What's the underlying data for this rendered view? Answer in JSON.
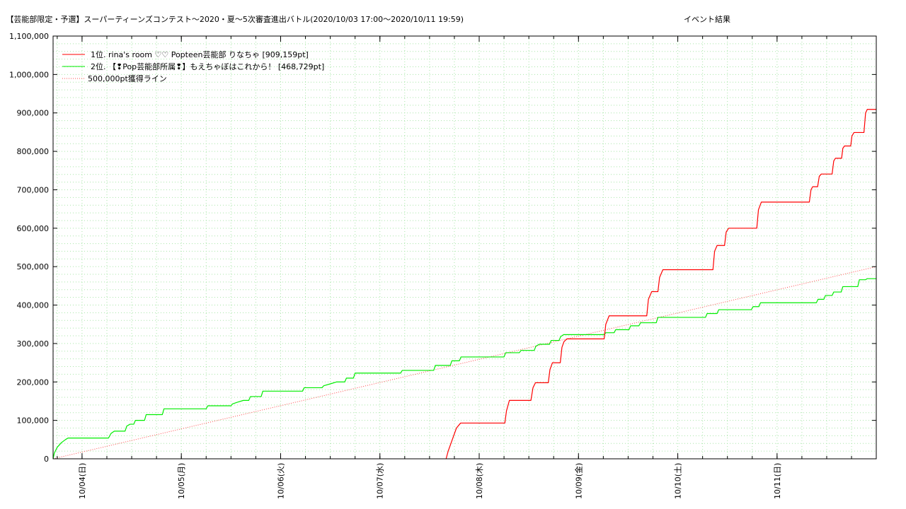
{
  "chart_data": {
    "type": "line",
    "title": "【芸能部限定・予選】スーパーティーンズコンテスト〜2020・夏〜5次審査進出バトル(2020/10/03 17:00〜2020/10/11 19:59)",
    "subtitle": "イベント結果",
    "xlabel": "",
    "ylabel": "",
    "x_unit": "hours since 2020/10/03 17:00",
    "xlim": [
      0,
      198.98
    ],
    "ylim": [
      0,
      1100000
    ],
    "y_ticks": [
      0,
      100000,
      200000,
      300000,
      400000,
      500000,
      600000,
      700000,
      800000,
      900000,
      1000000,
      1100000
    ],
    "y_tick_labels": [
      "0",
      "100,000",
      "200,000",
      "300,000",
      "400,000",
      "500,000",
      "600,000",
      "700,000",
      "800,000",
      "900,000",
      "1,000,000",
      "1,100,000"
    ],
    "x_ticks": [
      {
        "x": 7,
        "label": "10/04(日)"
      },
      {
        "x": 31,
        "label": "10/05(月)"
      },
      {
        "x": 55,
        "label": "10/06(火)"
      },
      {
        "x": 79,
        "label": "10/07(水)"
      },
      {
        "x": 103,
        "label": "10/08(木)"
      },
      {
        "x": 127,
        "label": "10/09(金)"
      },
      {
        "x": 151,
        "label": "10/10(土)"
      },
      {
        "x": 175,
        "label": "10/11(日)"
      }
    ],
    "grid": true,
    "legend_position": "top-left",
    "series": [
      {
        "name": "1位. rina's room ♡♡ Popteen芸能部 りなちゃ [909,159pt]",
        "color": "#ff0000",
        "style": "solid",
        "points": [
          [
            95.0,
            0
          ],
          [
            95.5,
            20000
          ],
          [
            96.5,
            50000
          ],
          [
            97.5,
            80000
          ],
          [
            98.5,
            93000
          ],
          [
            109.2,
            93000
          ],
          [
            109.6,
            125000
          ],
          [
            110.3,
            152000
          ],
          [
            115.5,
            152000
          ],
          [
            116.0,
            185000
          ],
          [
            116.6,
            198000
          ],
          [
            119.7,
            198000
          ],
          [
            120.1,
            232000
          ],
          [
            120.7,
            250000
          ],
          [
            122.6,
            250000
          ],
          [
            123.0,
            290000
          ],
          [
            123.5,
            305000
          ],
          [
            124.2,
            312000
          ],
          [
            133.2,
            312000
          ],
          [
            133.6,
            350000
          ],
          [
            134.4,
            372000
          ],
          [
            143.5,
            372000
          ],
          [
            143.9,
            415000
          ],
          [
            144.7,
            435000
          ],
          [
            146.2,
            435000
          ],
          [
            146.6,
            472000
          ],
          [
            147.4,
            492000
          ],
          [
            159.5,
            492000
          ],
          [
            159.9,
            540000
          ],
          [
            160.5,
            555000
          ],
          [
            162.3,
            555000
          ],
          [
            162.7,
            590000
          ],
          [
            163.3,
            600000
          ],
          [
            170.1,
            600000
          ],
          [
            170.5,
            648000
          ],
          [
            171.2,
            668000
          ],
          [
            182.8,
            668000
          ],
          [
            183.2,
            700000
          ],
          [
            183.6,
            708000
          ],
          [
            184.8,
            708000
          ],
          [
            185.2,
            735000
          ],
          [
            185.7,
            741000
          ],
          [
            188.3,
            741000
          ],
          [
            188.7,
            775000
          ],
          [
            189.1,
            782000
          ],
          [
            190.6,
            782000
          ],
          [
            190.9,
            808000
          ],
          [
            191.3,
            814000
          ],
          [
            192.8,
            814000
          ],
          [
            193.1,
            840000
          ],
          [
            193.6,
            849000
          ],
          [
            196.0,
            849000
          ],
          [
            196.4,
            900000
          ],
          [
            196.8,
            909159
          ],
          [
            198.98,
            909159
          ]
        ]
      },
      {
        "name": "2位. 【❢Pop芸能部所属❢】もえちゃぼはこれから！ [468,729pt]",
        "color": "#00ee00",
        "style": "solid",
        "points": [
          [
            0,
            0
          ],
          [
            0.3,
            15000
          ],
          [
            1.0,
            30000
          ],
          [
            2.0,
            42000
          ],
          [
            3.0,
            50000
          ],
          [
            3.6,
            54000
          ],
          [
            13.4,
            54000
          ],
          [
            14.0,
            66000
          ],
          [
            14.8,
            72000
          ],
          [
            17.4,
            72000
          ],
          [
            17.8,
            85000
          ],
          [
            18.6,
            90000
          ],
          [
            19.5,
            90000
          ],
          [
            19.9,
            100000
          ],
          [
            22.1,
            100000
          ],
          [
            22.5,
            115000
          ],
          [
            26.4,
            115000
          ],
          [
            26.8,
            130000
          ],
          [
            37.0,
            130000
          ],
          [
            37.4,
            138000
          ],
          [
            43.0,
            138000
          ],
          [
            43.4,
            143000
          ],
          [
            44.5,
            147000
          ],
          [
            46.0,
            152000
          ],
          [
            47.3,
            152000
          ],
          [
            47.7,
            162000
          ],
          [
            50.3,
            162000
          ],
          [
            50.7,
            176000
          ],
          [
            60.3,
            176000
          ],
          [
            60.7,
            185000
          ],
          [
            65.0,
            185000
          ],
          [
            65.4,
            190000
          ],
          [
            67.0,
            195000
          ],
          [
            68.5,
            200000
          ],
          [
            70.5,
            200000
          ],
          [
            70.9,
            210000
          ],
          [
            72.6,
            210000
          ],
          [
            73.0,
            223000
          ],
          [
            84.0,
            223000
          ],
          [
            84.4,
            230000
          ],
          [
            92.0,
            230000
          ],
          [
            92.4,
            243000
          ],
          [
            96.0,
            243000
          ],
          [
            96.4,
            255000
          ],
          [
            98.2,
            255000
          ],
          [
            98.6,
            265000
          ],
          [
            109.0,
            265000
          ],
          [
            109.4,
            276000
          ],
          [
            112.7,
            276000
          ],
          [
            113.1,
            282000
          ],
          [
            116.3,
            282000
          ],
          [
            116.7,
            293000
          ],
          [
            117.5,
            298000
          ],
          [
            120.0,
            298000
          ],
          [
            120.4,
            308000
          ],
          [
            122.3,
            308000
          ],
          [
            122.7,
            318000
          ],
          [
            123.4,
            323000
          ],
          [
            133.2,
            323000
          ],
          [
            133.6,
            328000
          ],
          [
            135.6,
            328000
          ],
          [
            136.0,
            336000
          ],
          [
            139.2,
            336000
          ],
          [
            139.6,
            346000
          ],
          [
            141.6,
            346000
          ],
          [
            142.0,
            354000
          ],
          [
            145.8,
            354000
          ],
          [
            146.2,
            368000
          ],
          [
            157.7,
            368000
          ],
          [
            158.1,
            378000
          ],
          [
            160.5,
            378000
          ],
          [
            160.9,
            388000
          ],
          [
            168.8,
            388000
          ],
          [
            169.2,
            396000
          ],
          [
            170.6,
            396000
          ],
          [
            171.0,
            406000
          ],
          [
            184.5,
            406000
          ],
          [
            184.9,
            415000
          ],
          [
            186.3,
            415000
          ],
          [
            186.7,
            425000
          ],
          [
            188.3,
            425000
          ],
          [
            188.7,
            434000
          ],
          [
            190.5,
            434000
          ],
          [
            190.9,
            448000
          ],
          [
            194.5,
            448000
          ],
          [
            194.9,
            466000
          ],
          [
            196.4,
            466000
          ],
          [
            196.8,
            468729
          ],
          [
            198.98,
            468729
          ]
        ]
      },
      {
        "name": "500,000pt獲得ライン",
        "color": "#ff4d4d",
        "style": "dotted",
        "points": [
          [
            0,
            0
          ],
          [
            198.98,
            500000
          ]
        ]
      }
    ]
  }
}
